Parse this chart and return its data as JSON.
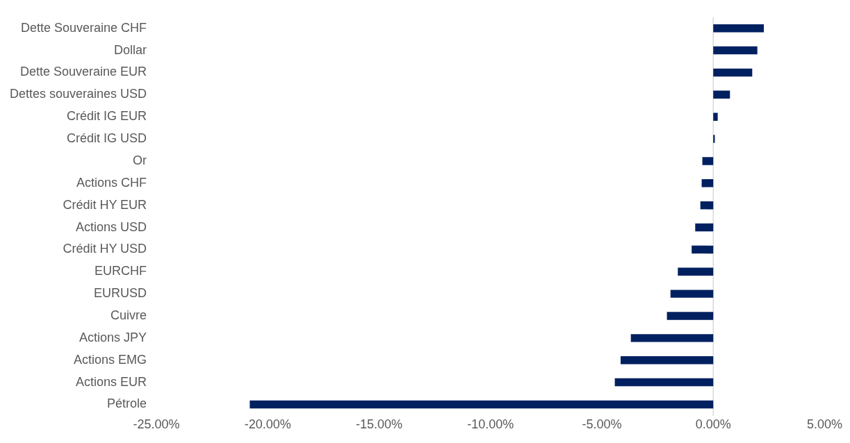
{
  "chart_data": {
    "type": "bar",
    "orientation": "horizontal",
    "categories": [
      "Dette Souveraine CHF",
      "Dollar",
      "Dette Souveraine EUR",
      "Dettes souveraines USD",
      "Crédit IG EUR",
      "Crédit IG USD",
      "Or",
      "Actions CHF",
      "Crédit HY EUR",
      "Actions USD",
      "Crédit HY USD",
      "EURCHF",
      "EURUSD",
      "Cuivre",
      "Actions JPY",
      "Actions EMG",
      "Actions EUR",
      "Pétrole"
    ],
    "values": [
      2.27,
      1.98,
      1.75,
      0.75,
      0.2,
      0.07,
      -0.49,
      -0.52,
      -0.58,
      -0.81,
      -0.97,
      -1.59,
      -1.92,
      -2.08,
      -3.7,
      -4.16,
      -4.42,
      -20.81
    ],
    "color": "#002060",
    "xlim": [
      -25,
      5
    ],
    "xticks": [
      {
        "value": -25,
        "label": "-25.00%"
      },
      {
        "value": -20,
        "label": "-20.00%"
      },
      {
        "value": -15,
        "label": "-15.00%"
      },
      {
        "value": -10,
        "label": "-10.00%"
      },
      {
        "value": -5,
        "label": "-5.00%"
      },
      {
        "value": 0,
        "label": "0.00%"
      },
      {
        "value": 5,
        "label": "5.00%"
      }
    ],
    "ref_lines": [
      {
        "axis": "x",
        "value": 0,
        "color": "#d9d9d9"
      }
    ],
    "grid": false,
    "legend": false
  }
}
